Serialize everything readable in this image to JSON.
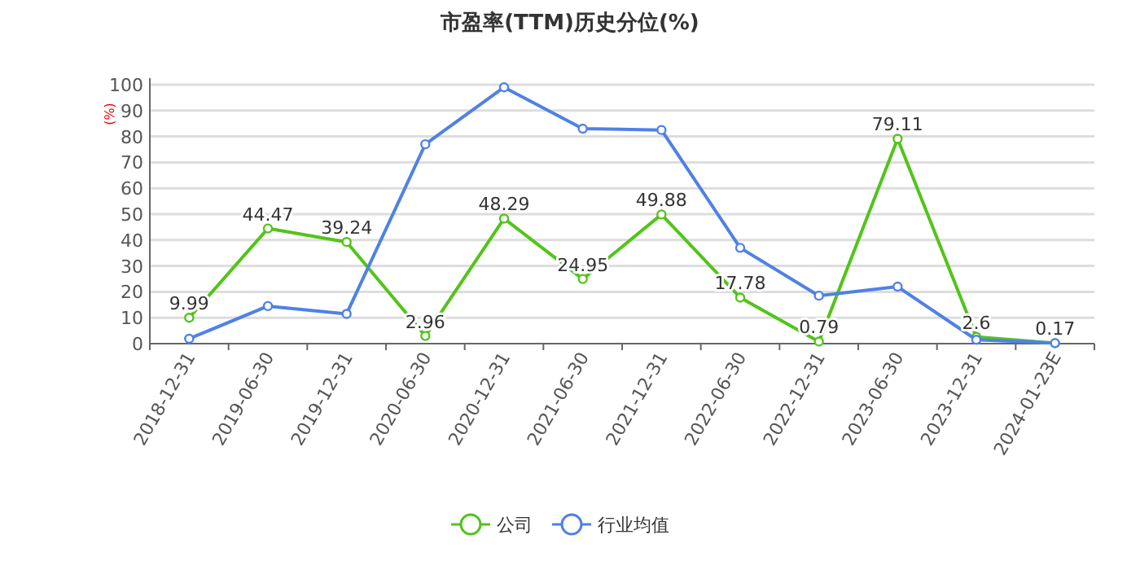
{
  "chart_data": {
    "type": "line",
    "title": "市盈率(TTM)历史分位(%)",
    "ylabel": "(%)",
    "categories": [
      "2018-12-31",
      "2019-06-30",
      "2019-12-31",
      "2020-06-30",
      "2020-12-31",
      "2021-06-30",
      "2021-12-31",
      "2022-06-30",
      "2022-12-31",
      "2023-06-30",
      "2023-12-31",
      "2024-01-23E"
    ],
    "series": [
      {
        "name": "公司",
        "color": "#52c41a",
        "values": [
          9.99,
          44.47,
          39.24,
          2.96,
          48.29,
          24.95,
          49.88,
          17.78,
          0.79,
          79.11,
          2.6,
          0.17
        ],
        "value_labels": [
          "9.99",
          "44.47",
          "39.24",
          "2.96",
          "48.29",
          "24.95",
          "49.88",
          "17.78",
          "0.79",
          "79.11",
          "2.6",
          "0.17"
        ]
      },
      {
        "name": "行业均值",
        "color": "#4f81e6",
        "values": [
          1.9,
          14.5,
          11.5,
          77,
          99,
          83,
          82.5,
          37,
          18.5,
          22,
          1.5,
          0.2
        ]
      }
    ],
    "ylim": [
      0,
      100
    ],
    "yticks": [
      0,
      10,
      20,
      30,
      40,
      50,
      60,
      70,
      80,
      90,
      100
    ],
    "grid": "y",
    "legend": "bottom",
    "marker": "circle"
  }
}
